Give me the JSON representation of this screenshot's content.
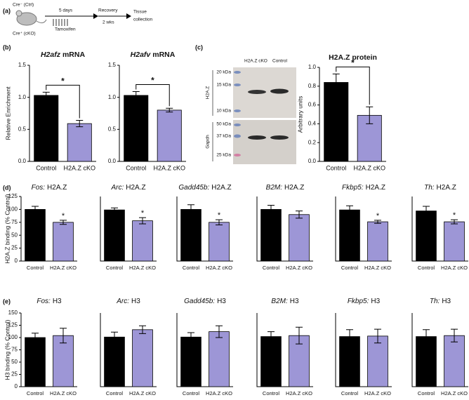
{
  "panel_labels": [
    "(a)",
    "(b)",
    "(c)",
    "(d)",
    "(e)"
  ],
  "schematic": {
    "group_ctrl": "Cre⁻ (Ctrl)",
    "group_cko": "Cre⁺ (cKO)",
    "step1": "5 days",
    "treatment": "Tamoxifen",
    "step2": "Recovery",
    "step2_duration": "2 wks",
    "end": [
      "Tissue",
      "collection"
    ]
  },
  "blot": {
    "lanes": [
      "H2A.Z cKO",
      "Control"
    ],
    "markers_top": [
      "20 kDa",
      "15 kDa",
      "10 kDa"
    ],
    "markers_bottom": [
      "50 kDa",
      "37 kDa",
      "25 kDa"
    ],
    "labels": [
      "H2A.Z",
      "Gapdh"
    ]
  },
  "chart_data": [
    {
      "type": "bar",
      "title_italic": "H2afz",
      "title": "mRNA",
      "ylabel": "Relative Enrichment",
      "categories": [
        "Control",
        "H2A.Z cKO"
      ],
      "values": [
        1.03,
        0.59
      ],
      "errors": [
        0.05,
        0.05
      ],
      "colors": [
        "#000000",
        "#9d96d6"
      ],
      "ylim": [
        0,
        1.5
      ],
      "yticks": [
        {
          "value": 0,
          "label": "0.0"
        },
        0.5,
        {
          "value": 1,
          "label": "1.0"
        },
        1.5
      ],
      "annotation": "*",
      "bracket": true
    },
    {
      "type": "bar",
      "title_italic": "H2afv",
      "title": "mRNA",
      "categories": [
        "Control",
        "H2A.Z cKO"
      ],
      "values": [
        1.03,
        0.8
      ],
      "errors": [
        0.06,
        0.03
      ],
      "colors": [
        "#000000",
        "#9d96d6"
      ],
      "ylim": [
        0,
        1.5
      ],
      "yticks": [
        {
          "value": 0,
          "label": "0.0"
        },
        0.5,
        {
          "value": 1,
          "label": "1.0"
        },
        1.5
      ],
      "annotation": "*",
      "bracket": true
    },
    {
      "type": "bar",
      "title": "H2A.Z protein",
      "ylabel": "Arbitrary units",
      "categories": [
        "Control",
        "H2A.Z cKO"
      ],
      "values": [
        0.84,
        0.49
      ],
      "errors": [
        0.09,
        0.09
      ],
      "colors": [
        "#000000",
        "#9d96d6"
      ],
      "ylim": [
        0,
        1.0
      ],
      "yticks": [
        {
          "value": 0,
          "label": "0.0"
        },
        0.2,
        0.4,
        0.6,
        0.8,
        {
          "value": 1,
          "label": "1.0"
        }
      ],
      "annotation": "*",
      "bracket": true
    },
    {
      "type": "bar",
      "title_italic": "Fos:",
      "title": "H2A.Z",
      "ylabel": "H2A.Z binding (% Control)",
      "categories": [
        "Control",
        "H2A.Z cKO"
      ],
      "values": [
        100,
        75
      ],
      "errors": [
        6,
        4
      ],
      "colors": [
        "#000000",
        "#9d96d6"
      ],
      "ylim": [
        0,
        125
      ],
      "yticks": [
        0,
        25,
        50,
        75,
        100,
        125
      ],
      "annotation": "*"
    },
    {
      "type": "bar",
      "title_italic": "Arc:",
      "title": "H2A.Z",
      "categories": [
        "Control",
        "H2A.Z cKO"
      ],
      "values": [
        99,
        78
      ],
      "errors": [
        4,
        6
      ],
      "colors": [
        "#000000",
        "#9d96d6"
      ],
      "ylim": [
        0,
        125
      ],
      "annotation": "*"
    },
    {
      "type": "bar",
      "title_italic": "Gadd45b:",
      "title": "H2A.Z",
      "categories": [
        "Control",
        "H2A.Z cKO"
      ],
      "values": [
        100,
        75
      ],
      "errors": [
        9,
        5
      ],
      "colors": [
        "#000000",
        "#9d96d6"
      ],
      "ylim": [
        0,
        125
      ],
      "annotation": "*"
    },
    {
      "type": "bar",
      "title_italic": "B2M:",
      "title": "H2A.Z",
      "categories": [
        "Control",
        "H2A.Z cKO"
      ],
      "values": [
        100,
        90
      ],
      "errors": [
        8,
        7
      ],
      "colors": [
        "#000000",
        "#9d96d6"
      ],
      "ylim": [
        0,
        125
      ]
    },
    {
      "type": "bar",
      "title_italic": "Fkbp5:",
      "title": "H2A.Z",
      "categories": [
        "Control",
        "H2A.Z cKO"
      ],
      "values": [
        99,
        76
      ],
      "errors": [
        8,
        3
      ],
      "colors": [
        "#000000",
        "#9d96d6"
      ],
      "ylim": [
        0,
        125
      ],
      "annotation": "*"
    },
    {
      "type": "bar",
      "title_italic": "Th:",
      "title": "H2A.Z",
      "categories": [
        "Control",
        "H2A.Z cKO"
      ],
      "values": [
        97,
        76
      ],
      "errors": [
        9,
        4
      ],
      "colors": [
        "#000000",
        "#9d96d6"
      ],
      "ylim": [
        0,
        125
      ],
      "annotation": "*"
    },
    {
      "type": "bar",
      "title_italic": "Fos:",
      "title": "H3",
      "ylabel": "H3 binding (% Control)",
      "categories": [
        "Control",
        "H2A.Z cKO"
      ],
      "values": [
        100,
        104
      ],
      "errors": [
        9,
        15
      ],
      "colors": [
        "#000000",
        "#9d96d6"
      ],
      "ylim": [
        0,
        150
      ],
      "yticks": [
        0,
        25,
        50,
        75,
        100,
        125,
        150
      ]
    },
    {
      "type": "bar",
      "title_italic": "Arc:",
      "title": "H3",
      "categories": [
        "Control",
        "H2A.Z cKO"
      ],
      "values": [
        101,
        116
      ],
      "errors": [
        10,
        8
      ],
      "colors": [
        "#000000",
        "#9d96d6"
      ],
      "ylim": [
        0,
        150
      ]
    },
    {
      "type": "bar",
      "title_italic": "Gadd45b:",
      "title": "H3",
      "categories": [
        "Control",
        "H2A.Z cKO"
      ],
      "values": [
        101,
        112
      ],
      "errors": [
        9,
        12
      ],
      "colors": [
        "#000000",
        "#9d96d6"
      ],
      "ylim": [
        0,
        150
      ]
    },
    {
      "type": "bar",
      "title_italic": "B2M:",
      "title": "H3",
      "categories": [
        "Control",
        "H2A.Z cKO"
      ],
      "values": [
        102,
        104
      ],
      "errors": [
        10,
        17
      ],
      "colors": [
        "#000000",
        "#9d96d6"
      ],
      "ylim": [
        0,
        150
      ]
    },
    {
      "type": "bar",
      "title_italic": "Fkbp5:",
      "title": "H3",
      "categories": [
        "Control",
        "H2A.Z cKO"
      ],
      "values": [
        102,
        103
      ],
      "errors": [
        14,
        14
      ],
      "colors": [
        "#000000",
        "#9d96d6"
      ],
      "ylim": [
        0,
        150
      ]
    },
    {
      "type": "bar",
      "title_italic": "Th:",
      "title": "H3",
      "categories": [
        "Control",
        "H2A.Z cKO"
      ],
      "values": [
        102,
        104
      ],
      "errors": [
        14,
        13
      ],
      "colors": [
        "#000000",
        "#9d96d6"
      ],
      "ylim": [
        0,
        150
      ]
    }
  ]
}
